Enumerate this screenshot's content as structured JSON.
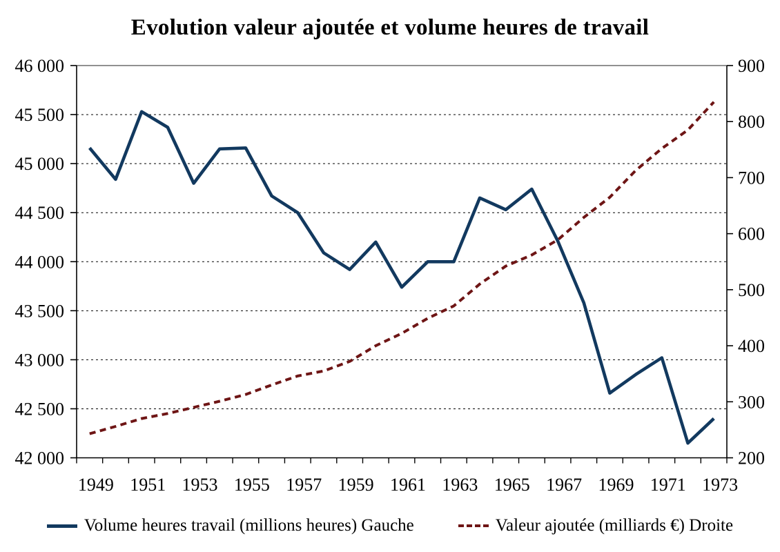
{
  "title": "Evolution valeur ajoutée et volume heures de travail",
  "legend": [
    {
      "id": "volume-heures",
      "label": "Volume heures travail (millions heures) Gauche",
      "color": "#12395f",
      "style": "solid"
    },
    {
      "id": "valeur-ajoutee",
      "label": "Valeur ajoutée (milliards €) Droite",
      "color": "#6e1515",
      "style": "dashed"
    }
  ],
  "chart_data": {
    "type": "line",
    "title": "Evolution valeur ajoutée et volume heures de travail",
    "categories": [
      1949,
      1950,
      1951,
      1952,
      1953,
      1954,
      1955,
      1956,
      1957,
      1958,
      1959,
      1960,
      1961,
      1962,
      1963,
      1964,
      1965,
      1966,
      1967,
      1968,
      1969,
      1970,
      1971,
      1972,
      1973
    ],
    "x_tick_labels": [
      "1949",
      "1951",
      "1953",
      "1955",
      "1957",
      "1959",
      "1961",
      "1963",
      "1965",
      "1967",
      "1969",
      "1971",
      "1973"
    ],
    "series": [
      {
        "id": "volume-heures-line",
        "name": "Volume heures travail (millions heures) Gauche",
        "axis": "left",
        "style": "solid",
        "color": "#12395f",
        "values": [
          45160,
          44840,
          45530,
          45370,
          44800,
          45150,
          45160,
          44670,
          44500,
          44090,
          43920,
          44200,
          43740,
          44000,
          44000,
          44650,
          44530,
          44740,
          44210,
          43580,
          42660,
          42850,
          43020,
          42150,
          42400
        ]
      },
      {
        "id": "valeur-ajoutee-line",
        "name": "Valeur ajoutée (milliards €) Droite",
        "axis": "right",
        "style": "dashed",
        "color": "#6e1515",
        "values": [
          243,
          256,
          270,
          279,
          290,
          301,
          313,
          330,
          346,
          355,
          372,
          400,
          422,
          449,
          471,
          510,
          542,
          562,
          589,
          629,
          665,
          713,
          752,
          785,
          835
        ]
      }
    ],
    "left_axis": {
      "min": 42000,
      "max": 46000,
      "step": 500,
      "tick_labels": [
        "46 000",
        "45 500",
        "45 000",
        "44 500",
        "44 000",
        "43 500",
        "43 000",
        "42 500",
        "42 000"
      ]
    },
    "right_axis": {
      "min": 200,
      "max": 900,
      "step": 100,
      "tick_labels": [
        "900",
        "800",
        "700",
        "600",
        "500",
        "400",
        "300",
        "200"
      ]
    },
    "grid": "horizontal-dashed",
    "legend_position": "bottom"
  }
}
